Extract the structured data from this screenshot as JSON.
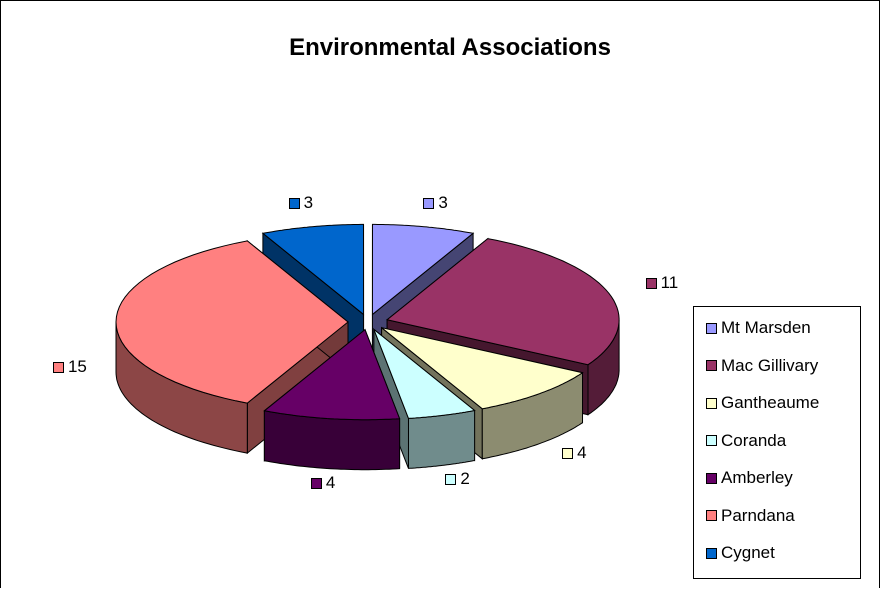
{
  "chart_data": {
    "type": "pie",
    "title": "Environmental Associations",
    "categories": [
      "Mt Marsden",
      "Mac Gillivary",
      "Gantheaume",
      "Coranda",
      "Amberley",
      "Parndana",
      "Cygnet"
    ],
    "values": [
      3,
      11,
      4,
      2,
      4,
      15,
      3
    ],
    "colors": [
      "#9999FF",
      "#993366",
      "#FFFFCC",
      "#CCFFFF",
      "#660066",
      "#FF8080",
      "#0066CC"
    ],
    "legend_position": "right",
    "style": "3d-exploded"
  }
}
